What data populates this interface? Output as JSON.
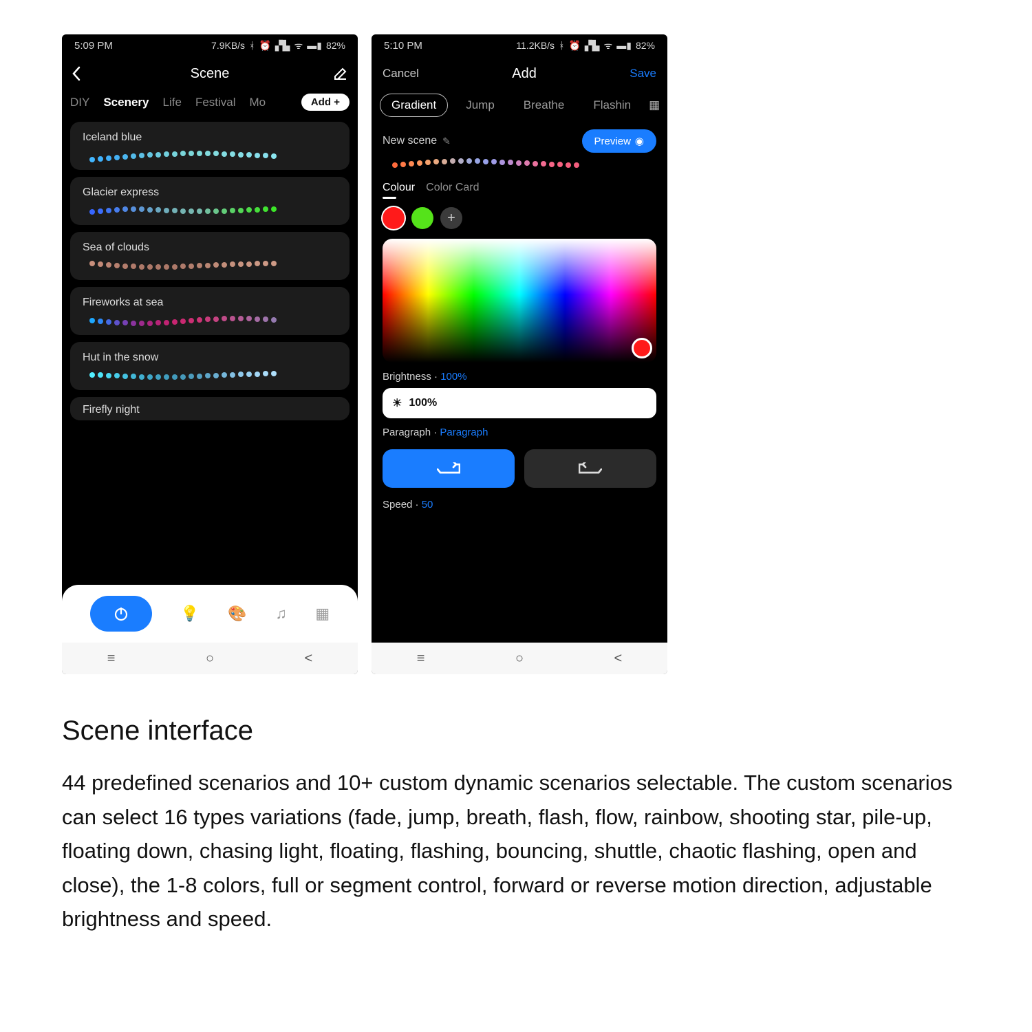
{
  "phone1": {
    "status": {
      "time": "5:09 PM",
      "net": "7.9KB/s",
      "battery": "82%"
    },
    "header": {
      "title": "Scene"
    },
    "tabs": {
      "items": [
        "DIY",
        "Scenery",
        "Life",
        "Festival",
        "Mo"
      ],
      "active_index": 1,
      "add_label": "Add +"
    },
    "cards": [
      {
        "title": "Iceland blue",
        "dot_colors": [
          "#42b6ff",
          "#3fb1fc",
          "#40aef7",
          "#44b0f3",
          "#4bb5ee",
          "#53bae9",
          "#5cc0e5",
          "#64c6e2",
          "#6ccbdf",
          "#71cfdd",
          "#76d3db",
          "#7ad6da",
          "#7dd8da",
          "#80dadb",
          "#82dbdd",
          "#83dcdf",
          "#83dce1",
          "#84dde3",
          "#85dee6",
          "#86dfe9",
          "#87dfeb",
          "#88e0ed",
          "#8be6ef"
        ],
        "offsets": [
          7,
          6,
          5,
          4,
          3,
          2,
          1,
          0,
          0,
          -1,
          -1,
          -2,
          -2,
          -2,
          -2,
          -2,
          -1,
          -1,
          0,
          0,
          1,
          1,
          2
        ]
      },
      {
        "title": "Glacier express",
        "dot_colors": [
          "#3766ff",
          "#3b6dfb",
          "#4075f4",
          "#477ded",
          "#4f86e4",
          "#578fdb",
          "#5e97d2",
          "#65a0c9",
          "#6ba8c1",
          "#6fadbb",
          "#73b1b6",
          "#75b4b2",
          "#76b6b0",
          "#77b8ae",
          "#71bf9d",
          "#6ac58b",
          "#62cc78",
          "#5ad166",
          "#53d655",
          "#4cdb47",
          "#46df3b",
          "#41e331",
          "#3ce628"
        ],
        "offsets": [
          3,
          2,
          1,
          0,
          -1,
          -1,
          -1,
          0,
          0,
          1,
          1,
          2,
          2,
          2,
          2,
          2,
          2,
          1,
          1,
          0,
          0,
          -1,
          -1
        ]
      },
      {
        "title": "Sea of clouds",
        "dot_colors": [
          "#c98f7c",
          "#c28977",
          "#bc8473",
          "#b7806f",
          "#b37d6c",
          "#b07a6a",
          "#ae7969",
          "#ad7868",
          "#ac7868",
          "#ac7868",
          "#ad7969",
          "#af7b6b",
          "#b27e6d",
          "#b68270",
          "#ba8673",
          "#be8a77",
          "#c28e7a",
          "#c5917d",
          "#c89480",
          "#ca9682",
          "#cc9884",
          "#cd9985",
          "#ce9a86"
        ],
        "offsets": [
          -2,
          -1,
          0,
          1,
          2,
          2,
          3,
          3,
          3,
          3,
          3,
          2,
          2,
          1,
          1,
          0,
          0,
          -1,
          -1,
          -1,
          -2,
          -2,
          -2
        ]
      },
      {
        "title": "Fireworks at sea",
        "dot_colors": [
          "#1ea8ff",
          "#2e88f6",
          "#456be4",
          "#5e52cc",
          "#7640b4",
          "#8b339e",
          "#9d2a8d",
          "#ac2580",
          "#b82378",
          "#c12373",
          "#c72571",
          "#ca2971",
          "#cb2e73",
          "#cb3476",
          "#c83b7b",
          "#c54381",
          "#c04b88",
          "#ba538f",
          "#b45b96",
          "#ad649d",
          "#a56ca4",
          "#9d73aa",
          "#957ab0"
        ],
        "offsets": [
          1,
          2,
          3,
          4,
          4,
          5,
          5,
          5,
          4,
          4,
          3,
          2,
          1,
          0,
          -1,
          -1,
          -2,
          -2,
          -2,
          -2,
          -1,
          -1,
          0
        ]
      },
      {
        "title": "Hut in the snow",
        "dot_colors": [
          "#52f0ff",
          "#4ee5f9",
          "#4ad9f2",
          "#47cdea",
          "#44c2e1",
          "#42b8d8",
          "#40afd0",
          "#3fa7c8",
          "#3fa1c2",
          "#409dbe",
          "#429abb",
          "#469abb",
          "#4c9cbd",
          "#54a0c2",
          "#5ea6c9",
          "#6aaed1",
          "#76b7da",
          "#83c0e3",
          "#8fc9eb",
          "#9ad1f1",
          "#a3d7f6",
          "#aadcf9",
          "#afdffb"
        ],
        "offsets": [
          0,
          0,
          1,
          1,
          2,
          2,
          3,
          3,
          3,
          3,
          3,
          3,
          2,
          2,
          1,
          1,
          0,
          0,
          -1,
          -1,
          -1,
          -2,
          -2
        ]
      }
    ],
    "partial_card_title": "Firefly night"
  },
  "phone2": {
    "status": {
      "time": "5:10 PM",
      "net": "11.2KB/s",
      "battery": "82%"
    },
    "header": {
      "cancel": "Cancel",
      "title": "Add",
      "save": "Save"
    },
    "chips": {
      "items": [
        "Gradient",
        "Jump",
        "Breathe",
        "Flashin"
      ],
      "active_index": 0
    },
    "scene_name": "New scene",
    "preview_label": "Preview",
    "wave_colors": [
      "#ff6b3c",
      "#ff7a47",
      "#ff8952",
      "#fe975e",
      "#f7a26d",
      "#eaa980",
      "#d8ac97",
      "#c4adb0",
      "#b0acc6",
      "#a0a9d8",
      "#97a5e4",
      "#97a0e8",
      "#9f9be6",
      "#ad94dd",
      "#be8ccf",
      "#cf83bf",
      "#de7bae",
      "#ea729e",
      "#f26b91",
      "#f76587",
      "#f86180",
      "#f65e7d",
      "#f25d7d"
    ],
    "wave_offsets": [
      4,
      3,
      2,
      1,
      0,
      -1,
      -1,
      -2,
      -2,
      -2,
      -2,
      -1,
      -1,
      0,
      0,
      1,
      1,
      2,
      2,
      3,
      3,
      4,
      4
    ],
    "color_tabs": {
      "items": [
        "Colour",
        "Color Card"
      ],
      "active_index": 0
    },
    "swatches": {
      "colors": [
        "#ff1a1a",
        "#55e31a"
      ],
      "selected_index": 0
    },
    "picker_cursor_color": "#ff1a1a",
    "brightness": {
      "label": "Brightness",
      "value": "100%",
      "slider_text": "100%"
    },
    "paragraph": {
      "label": "Paragraph",
      "value": "Paragraph"
    },
    "speed": {
      "label": "Speed",
      "value": "50"
    }
  },
  "description": {
    "title": "Scene interface",
    "body": "44 predefined scenarios and 10+ custom dynamic scenarios selectable. The custom scenarios can select 16 types variations (fade, jump, breath, flash, flow, rainbow, shooting star, pile-up, floating down, chasing light, floating, flashing, bouncing, shuttle, chaotic flashing, open and close), the 1-8 colors, full or segment control, forward or reverse motion direction, adjustable brightness and speed."
  },
  "colors": {
    "accent": "#1a7dff"
  }
}
